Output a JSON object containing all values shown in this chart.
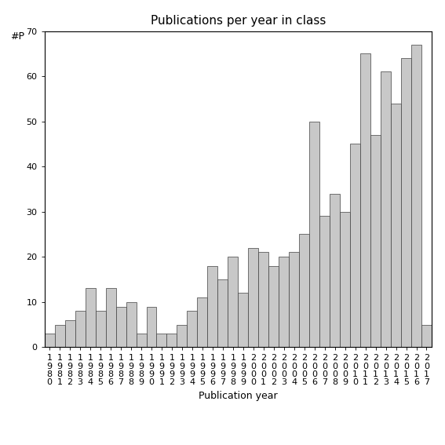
{
  "years": [
    "1980",
    "1981",
    "1982",
    "1983",
    "1984",
    "1985",
    "1986",
    "1987",
    "1988",
    "1989",
    "1990",
    "1991",
    "1992",
    "1993",
    "1994",
    "1995",
    "1996",
    "1997",
    "1998",
    "1999",
    "2000",
    "2001",
    "2002",
    "2003",
    "2004",
    "2005",
    "2006",
    "2007",
    "2008",
    "2009",
    "2010",
    "2011",
    "2012",
    "2013",
    "2014",
    "2015",
    "2016",
    "2017"
  ],
  "values": [
    3,
    5,
    6,
    8,
    13,
    8,
    13,
    9,
    10,
    3,
    9,
    3,
    3,
    5,
    8,
    11,
    18,
    15,
    20,
    12,
    22,
    21,
    18,
    20,
    21,
    25,
    50,
    29,
    34,
    30,
    45,
    65,
    47,
    61,
    54,
    64,
    67,
    5
  ],
  "title": "Publications per year in class",
  "xlabel": "Publication year",
  "ylabel": "#P",
  "ylim": [
    0,
    70
  ],
  "yticks": [
    0,
    10,
    20,
    30,
    40,
    50,
    60,
    70
  ],
  "bar_color": "#c8c8c8",
  "bar_edge_color": "#404040",
  "background_color": "#ffffff",
  "title_fontsize": 11,
  "label_fontsize": 9,
  "tick_fontsize": 8,
  "ylabel_fontsize": 9
}
